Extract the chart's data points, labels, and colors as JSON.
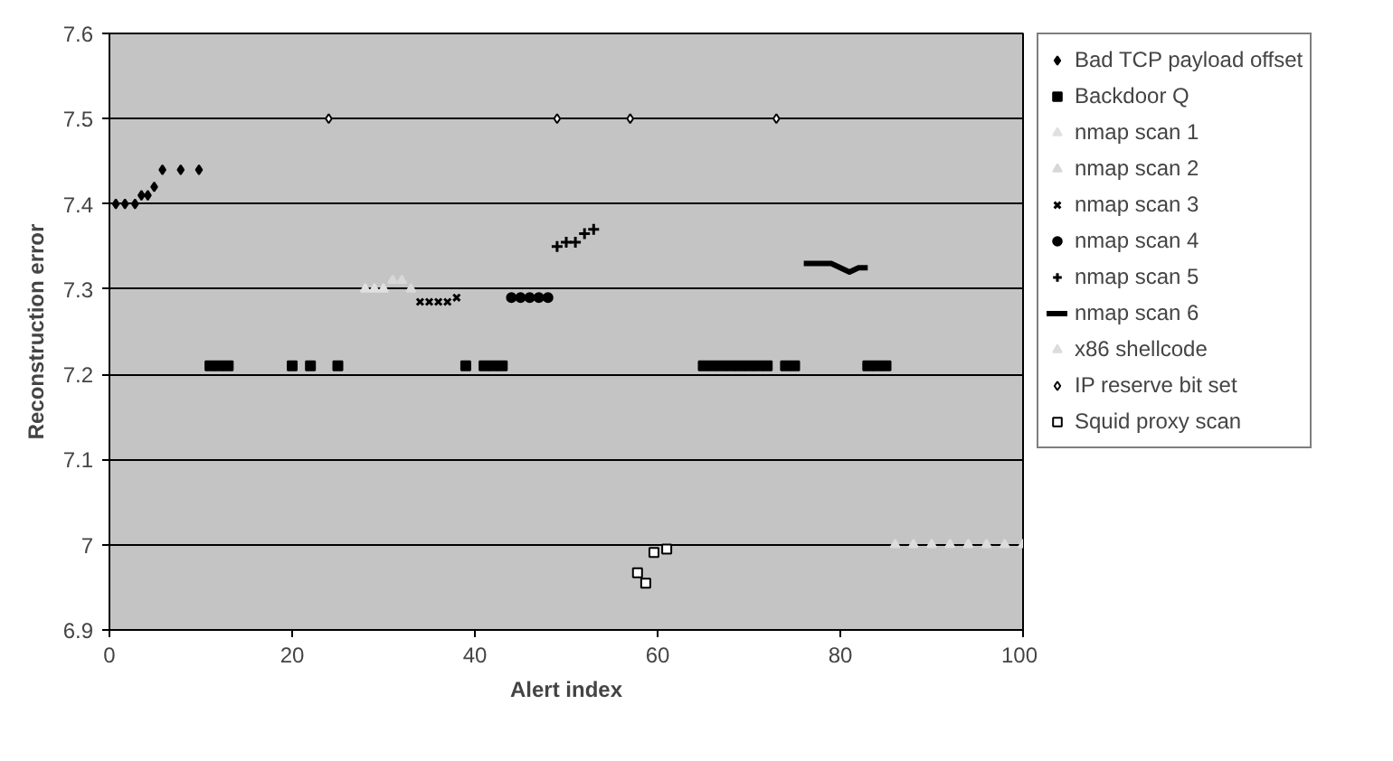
{
  "chart_data": {
    "type": "scatter",
    "xlabel": "Alert index",
    "ylabel": "Reconstruction error",
    "xlim": [
      0,
      100
    ],
    "ylim": [
      6.9,
      7.6
    ],
    "xticks": [
      0,
      20,
      40,
      60,
      80,
      100
    ],
    "yticks": [
      {
        "value": 6.9,
        "label": "6.9"
      },
      {
        "value": 7.0,
        "label": "7"
      },
      {
        "value": 7.1,
        "label": "7.1"
      },
      {
        "value": 7.2,
        "label": "7.2"
      },
      {
        "value": 7.3,
        "label": "7.3"
      },
      {
        "value": 7.4,
        "label": "7.4"
      },
      {
        "value": 7.5,
        "label": "7.5"
      },
      {
        "value": 7.6,
        "label": "7.6"
      }
    ],
    "grid": "y",
    "legend": "right",
    "series": [
      {
        "name": "Bad TCP payload offset",
        "color": "#000000",
        "marker": "diamond",
        "x": [
          0.7,
          1.7,
          2.8,
          3.5,
          4.2,
          4.9,
          5.8,
          7.8,
          9.8
        ],
        "values": [
          7.4,
          7.4,
          7.4,
          7.41,
          7.41,
          7.42,
          7.44,
          7.44,
          7.44
        ]
      },
      {
        "name": "Backdoor Q",
        "color": "#000000",
        "marker": "square",
        "x": [
          11,
          12,
          13,
          20,
          22,
          25,
          39,
          41,
          42,
          43,
          65,
          66,
          67,
          68,
          69,
          70,
          71,
          72,
          74,
          75,
          83,
          84,
          85
        ],
        "values": [
          7.21,
          7.21,
          7.21,
          7.21,
          7.21,
          7.21,
          7.21,
          7.21,
          7.21,
          7.21,
          7.21,
          7.21,
          7.21,
          7.21,
          7.21,
          7.21,
          7.21,
          7.21,
          7.21,
          7.21,
          7.21,
          7.21,
          7.21
        ]
      },
      {
        "name": "nmap scan 1",
        "color": "#e0e0e0",
        "marker": "triangle",
        "x": [
          28,
          29,
          30
        ],
        "values": [
          7.3,
          7.3,
          7.3
        ]
      },
      {
        "name": "nmap scan 2",
        "color": "#d8d8d8",
        "marker": "triangle",
        "x": [
          31,
          32,
          33
        ],
        "values": [
          7.31,
          7.31,
          7.3
        ]
      },
      {
        "name": "nmap scan 3",
        "color": "#000000",
        "marker": "x",
        "x": [
          34,
          35,
          36,
          37,
          38
        ],
        "values": [
          7.285,
          7.285,
          7.285,
          7.285,
          7.29
        ]
      },
      {
        "name": "nmap scan 4",
        "color": "#000000",
        "marker": "circle",
        "x": [
          44,
          45,
          46,
          47,
          48
        ],
        "values": [
          7.29,
          7.29,
          7.29,
          7.29,
          7.29
        ]
      },
      {
        "name": "nmap scan 5",
        "color": "#000000",
        "marker": "cross",
        "x": [
          49,
          50,
          51,
          52,
          53
        ],
        "values": [
          7.35,
          7.355,
          7.355,
          7.365,
          7.37
        ]
      },
      {
        "name": "nmap scan 6",
        "color": "#000000",
        "type": "line",
        "marker": "none",
        "x": [
          76,
          77,
          78,
          79,
          80,
          81,
          82,
          83
        ],
        "values": [
          7.33,
          7.33,
          7.33,
          7.33,
          7.325,
          7.32,
          7.325,
          7.325
        ]
      },
      {
        "name": "x86 shellcode",
        "color": "#dcdcdc",
        "marker": "triangle",
        "x": [
          86,
          88,
          90,
          92,
          94,
          96,
          98,
          100
        ],
        "values": [
          7.0,
          7.0,
          7.0,
          7.0,
          7.0,
          7.0,
          7.0,
          7.0
        ]
      },
      {
        "name": "IP reserve bit set",
        "color": "#ffffff",
        "marker": "diamond",
        "x": [
          24,
          49,
          57,
          73
        ],
        "values": [
          7.5,
          7.5,
          7.5,
          7.5
        ]
      },
      {
        "name": "Squid proxy scan",
        "color": "#ffffff",
        "marker": "square",
        "x": [
          57.8,
          58.7,
          59.6,
          61
        ],
        "values": [
          6.967,
          6.955,
          6.991,
          6.995
        ]
      }
    ]
  }
}
